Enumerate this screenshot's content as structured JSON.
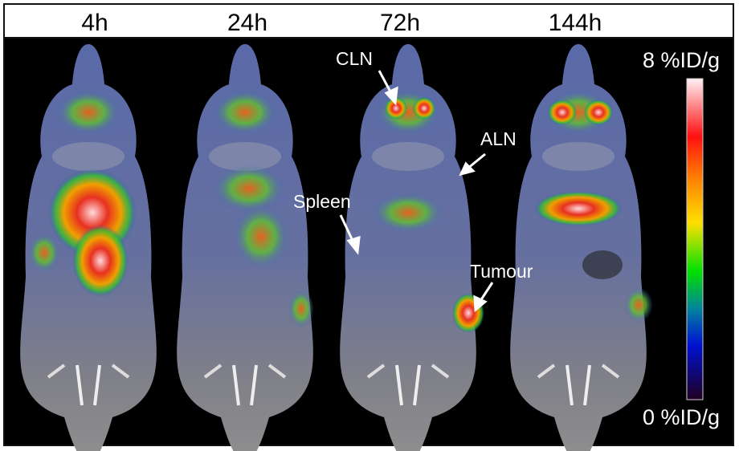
{
  "timepoints": [
    "4h",
    "24h",
    "72h",
    "144h"
  ],
  "annotations": {
    "cln": "CLN",
    "aln": "ALN",
    "spleen": "Spleen",
    "tumour": "Tumour"
  },
  "colorbar": {
    "max_label": "8 %ID/g",
    "min_label": "0 %ID/g",
    "colors": [
      "#fff0f4",
      "#ff1010",
      "#ff8800",
      "#ffe000",
      "#00e000",
      "#0080a0",
      "#0010d0",
      "#200020"
    ]
  }
}
